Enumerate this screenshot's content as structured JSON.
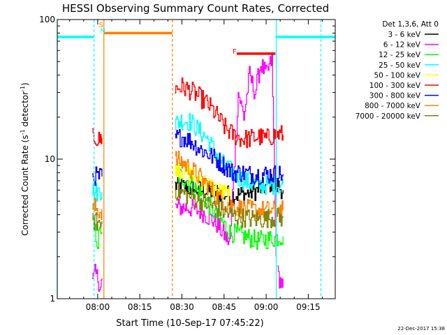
{
  "chart_data": {
    "type": "line",
    "title": "HESSI Observing Summary Count Rates, Corrected",
    "xlabel": "Start Time (10-Sep-17 07:45:22)",
    "ylabel_main": "Corrected Count Rate (s",
    "ylabel_sup1": "-1",
    "ylabel_mid": " detector",
    "ylabel_sup2": "-1",
    "ylabel_end": ")",
    "yscale": "log",
    "ylim": [
      1,
      100
    ],
    "xlim_minutes": [
      -14.4,
      84.6
    ],
    "x_ticks": [
      {
        "label": "08:00",
        "min": 0
      },
      {
        "label": "08:15",
        "min": 15
      },
      {
        "label": "08:30",
        "min": 30
      },
      {
        "label": "08:45",
        "min": 45
      },
      {
        "label": "09:00",
        "min": 60
      },
      {
        "label": "09:15",
        "min": 75
      }
    ],
    "y_tick_labels": [
      {
        "label": "1",
        "value": 1
      },
      {
        "label": "10",
        "value": 10
      },
      {
        "label": "100",
        "value": 100
      }
    ],
    "legend_title": "Det 1,3,6, Att 0",
    "legend_placement": "right",
    "series": [
      {
        "name": "3 - 6 keV",
        "color": "#000000",
        "segments": [
          {
            "x": [
              27.5,
              32,
              37,
              42,
              47,
              52,
              57,
              62,
              66
            ],
            "y": [
              6.5,
              6.2,
              6.0,
              5.8,
              5.5,
              5.6,
              6.0,
              6.8,
              6.0
            ]
          }
        ]
      },
      {
        "name": "6 - 12 keV",
        "color": "#ff00ff",
        "segments": [
          {
            "x": [
              -2,
              -1,
              0,
              1,
              1.5
            ],
            "y": [
              1.3,
              1.5,
              1.4,
              1.2,
              1.4
            ]
          },
          {
            "x": [
              27.5,
              32,
              37,
              42,
              47,
              50,
              52,
              54,
              56,
              58,
              60,
              62,
              63.5
            ],
            "y": [
              4.5,
              4.5,
              4.2,
              3.5,
              2.5,
              30,
              20,
              40,
              30,
              48,
              40,
              52,
              2
            ]
          },
          {
            "x": [
              64,
              66
            ],
            "y": [
              1.5,
              1.2
            ]
          }
        ]
      },
      {
        "name": "12 - 25 keV",
        "color": "#00ff00",
        "segments": [
          {
            "x": [
              -2,
              -1,
              0,
              1,
              1.5
            ],
            "y": [
              3.5,
              3.0,
              2.5,
              3.2,
              3.0
            ]
          },
          {
            "x": [
              27.5,
              32,
              37,
              42,
              47,
              52,
              57,
              62,
              66
            ],
            "y": [
              8.0,
              7.0,
              5.5,
              4.0,
              3.0,
              2.8,
              2.6,
              2.7,
              2.8
            ]
          }
        ]
      },
      {
        "name": "25 - 50 keV",
        "color": "#00ffff",
        "segments": [
          {
            "x": [
              -2,
              -1,
              0,
              1,
              1.5
            ],
            "y": [
              6.0,
              5.8,
              5.8,
              6.0,
              5.8
            ]
          },
          {
            "x": [
              27.5,
              30,
              33,
              36,
              39,
              42,
              45,
              48,
              52,
              57,
              62,
              66
            ],
            "y": [
              18,
              19,
              18.5,
              16,
              14,
              11,
              9,
              8,
              7,
              6.5,
              6.5,
              6.5
            ]
          }
        ]
      },
      {
        "name": "50 - 100 keV",
        "color": "#ffff00",
        "segments": [
          {
            "x": [
              27.5,
              32,
              37,
              42,
              47
            ],
            "y": [
              9,
              8,
              7,
              6,
              5.5
            ]
          }
        ]
      },
      {
        "name": "100 - 300 keV",
        "color": "#ff0000",
        "segments": [
          {
            "x": [
              -2,
              -1,
              0,
              1,
              1.5
            ],
            "y": [
              14,
              14.5,
              13.5,
              14,
              14.2
            ]
          },
          {
            "x": [
              27.5,
              30,
              33,
              36,
              39,
              42,
              45,
              48,
              51,
              54,
              57,
              60,
              63,
              66
            ],
            "y": [
              32,
              33,
              31,
              28,
              25,
              21,
              17,
              15,
              14,
              14,
              14.5,
              14,
              15,
              15
            ]
          }
        ]
      },
      {
        "name": "300 - 800 keV",
        "color": "#0000ff",
        "segments": [
          {
            "x": [
              -2,
              -1,
              0,
              1,
              1.5
            ],
            "y": [
              7.5,
              7.6,
              7.4,
              7.5,
              7.5
            ]
          },
          {
            "x": [
              27.5,
              30,
              33,
              36,
              39,
              42,
              45,
              48,
              51,
              54,
              57,
              60,
              63,
              66
            ],
            "y": [
              14,
              14.5,
              13.5,
              12,
              11,
              10,
              9,
              8,
              8,
              7.8,
              7.8,
              7.8,
              7.8,
              7.8
            ]
          }
        ]
      },
      {
        "name": "800 - 7000 keV",
        "color": "#ff8000",
        "segments": [
          {
            "x": [
              -2,
              -1,
              0,
              1,
              1.5
            ],
            "y": [
              4.2,
              4.5,
              4.3,
              4.2,
              4.4
            ]
          },
          {
            "x": [
              27.5,
              30,
              33,
              36,
              39,
              42,
              45,
              48,
              52,
              57,
              62,
              66
            ],
            "y": [
              10,
              9.5,
              8.5,
              7.5,
              6.5,
              5.5,
              5.0,
              4.6,
              4.4,
              4.3,
              4.3,
              4.3
            ]
          }
        ]
      },
      {
        "name": "7000 - 20000 keV",
        "color": "#808000",
        "segments": [
          {
            "x": [
              -2,
              -1,
              0,
              1,
              1.5
            ],
            "y": [
              3.5,
              3.6,
              3.5,
              3.4,
              3.6
            ]
          },
          {
            "x": [
              27.5,
              32,
              37,
              42,
              47,
              52,
              57,
              62,
              66
            ],
            "y": [
              6.0,
              5.5,
              5.0,
              4.5,
              4.0,
              3.8,
              3.7,
              3.8,
              3.8
            ]
          }
        ]
      }
    ],
    "flag_bars": [
      {
        "name": "night-bar-left",
        "color": "#00ffff",
        "x": [
          -14.4,
          -1.3
        ],
        "y": 75
      },
      {
        "name": "night-bar-right",
        "color": "#00ffff",
        "x": [
          63.6,
          84.6
        ],
        "y": 75
      },
      {
        "name": "saa-bar",
        "color": "#ff8000",
        "x": [
          2.2,
          26.6
        ],
        "y": 80
      },
      {
        "name": "flare-bar",
        "color": "#ff0000",
        "x": [
          49.5,
          63.3
        ],
        "y": 57
      }
    ],
    "vlines": [
      {
        "color": "#00ffff",
        "x": -14.4,
        "style": "solid"
      },
      {
        "color": "#00ffff",
        "x": -1.3,
        "style": "dashed"
      },
      {
        "color": "#ff8000",
        "x": 2.2,
        "style": "solid"
      },
      {
        "color": "#ff8000",
        "x": 26.6,
        "style": "dashed"
      },
      {
        "color": "#00ffff",
        "x": 63.6,
        "style": "solid"
      },
      {
        "color": "#00ffff",
        "x": 79.5,
        "style": "dashed"
      }
    ],
    "annotations": [
      {
        "text": "S",
        "color": "#ff8000",
        "x": 0.4,
        "y": 88
      },
      {
        "text": "N",
        "color": "#00ffff",
        "x": 0.9,
        "y": 80
      },
      {
        "text": "F",
        "color": "#ff0000",
        "x": 48.0,
        "y": 57
      }
    ],
    "timestamp": "22-Dec-2017 15:38"
  }
}
